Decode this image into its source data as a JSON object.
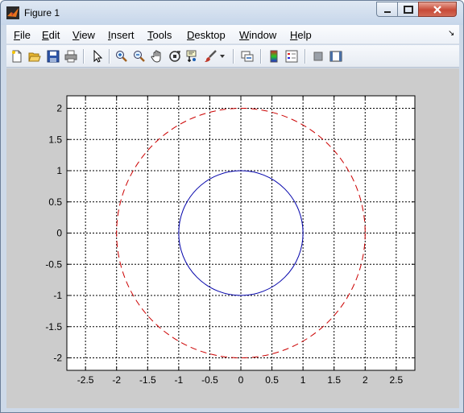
{
  "window": {
    "title": "Figure 1",
    "icon": "matlab-logo-icon"
  },
  "menu": [
    {
      "label": "File",
      "mnemonic": "F",
      "rest": "ile"
    },
    {
      "label": "Edit",
      "mnemonic": "E",
      "rest": "dit"
    },
    {
      "label": "View",
      "mnemonic": "V",
      "rest": "iew"
    },
    {
      "label": "Insert",
      "mnemonic": "I",
      "rest": "nsert"
    },
    {
      "label": "Tools",
      "mnemonic": "T",
      "rest": "ools"
    },
    {
      "label": "Desktop",
      "mnemonic": "D",
      "rest": "esktop"
    },
    {
      "label": "Window",
      "mnemonic": "W",
      "rest": "indow"
    },
    {
      "label": "Help",
      "mnemonic": "H",
      "rest": "elp"
    }
  ],
  "toolbar": [
    "new-figure-icon",
    "open-file-icon",
    "save-icon",
    "print-icon",
    "edit-plot-arrow-icon",
    "zoom-in-icon",
    "zoom-out-icon",
    "pan-hand-icon",
    "rotate-3d-icon",
    "data-cursor-icon",
    "brush-icon",
    "link-plot-icon",
    "colorbar-icon",
    "legend-icon",
    "hide-plot-tools-icon",
    "show-plot-tools-icon"
  ],
  "chart_data": {
    "type": "line",
    "xlim": [
      -2.8,
      2.8
    ],
    "ylim": [
      -2.2,
      2.2
    ],
    "grid": true,
    "axis_equal": true,
    "xticks": [
      -2.5,
      -2,
      -1.5,
      -1,
      -0.5,
      0,
      0.5,
      1,
      1.5,
      2,
      2.5
    ],
    "yticks": [
      -2,
      -1.5,
      -1,
      -0.5,
      0,
      0.5,
      1,
      1.5,
      2
    ],
    "xtick_labels": [
      "-2.5",
      "-2",
      "-1.5",
      "-1",
      "-0.5",
      "0",
      "0.5",
      "1",
      "1.5",
      "2",
      "2.5"
    ],
    "ytick_labels": [
      "-2",
      "-1.5",
      "-1",
      "-0.5",
      "0",
      "0.5",
      "1",
      "1.5",
      "2"
    ],
    "series": [
      {
        "shape": "circle",
        "center": [
          0,
          0
        ],
        "radius": 1,
        "color": "#0000aa",
        "style": "solid"
      },
      {
        "shape": "circle",
        "center": [
          0,
          0
        ],
        "radius": 2,
        "color": "#cc0000",
        "style": "dashed"
      }
    ]
  }
}
